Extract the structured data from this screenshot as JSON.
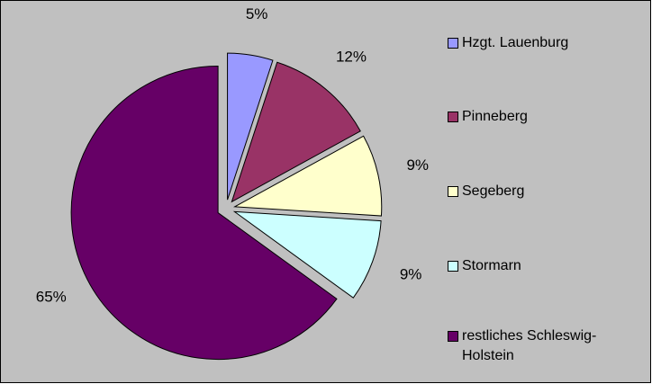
{
  "chart_data": {
    "type": "pie",
    "categories": [
      "Hzgt. Lauenburg",
      "Pinneberg",
      "Segeberg",
      "Stormarn",
      "restliches Schleswig-Holstein"
    ],
    "values": [
      5,
      12,
      9,
      9,
      65
    ],
    "value_labels": [
      "5%",
      "12%",
      "9%",
      "9%",
      "65%"
    ],
    "colors": [
      "#9999ff",
      "#993366",
      "#ffffcc",
      "#ccffff",
      "#660066"
    ],
    "legend": "right"
  }
}
